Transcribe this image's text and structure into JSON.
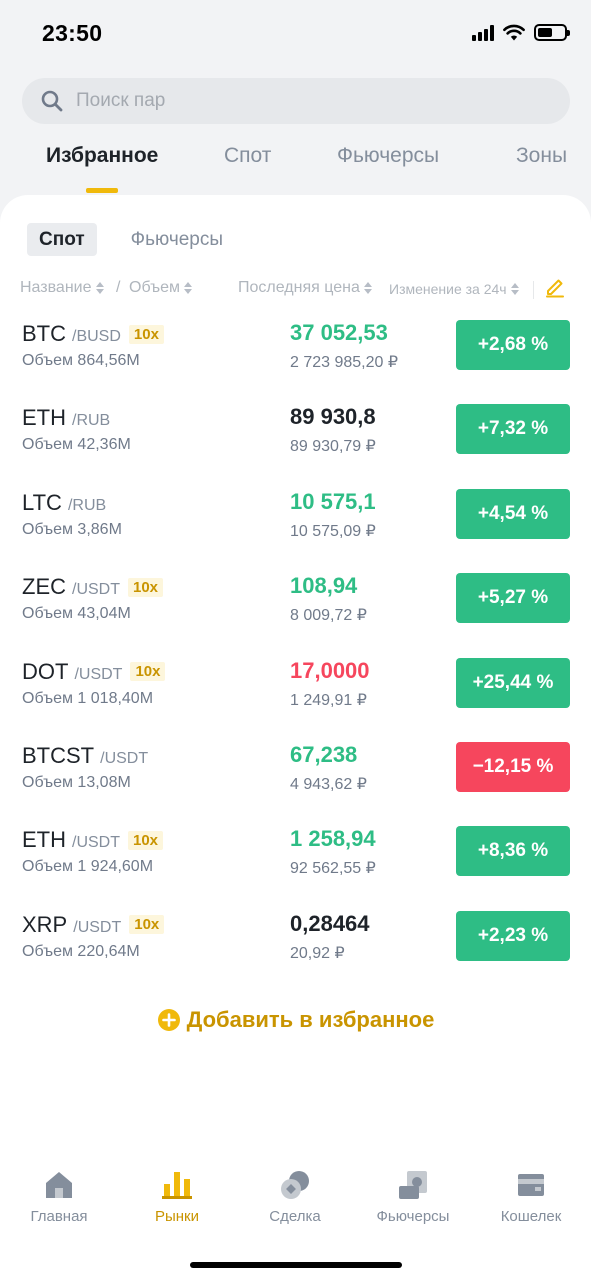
{
  "status_bar": {
    "time": "23:50"
  },
  "search": {
    "placeholder": "Поиск пар"
  },
  "top_tabs": [
    {
      "label": "Избранное",
      "active": true
    },
    {
      "label": "Спот"
    },
    {
      "label": "Фьючерсы"
    },
    {
      "label": "Зоны"
    }
  ],
  "sub_tabs": [
    {
      "label": "Спот",
      "active": true
    },
    {
      "label": "Фьючерсы"
    }
  ],
  "columns": {
    "name": "Название",
    "separator": "/",
    "volume": "Объем",
    "last_price": "Последняя цена",
    "change": "Изменение за 24ч"
  },
  "rows": [
    {
      "base": "BTC",
      "quote": "/BUSD",
      "leverage": "10x",
      "volume": "Объем 864,56M",
      "price": "37 052,53",
      "fiat": "2 723 985,20 ₽",
      "change": "+2,68 %"
    },
    {
      "base": "ETH",
      "quote": "/RUB",
      "leverage": "",
      "volume": "Объем 42,36M",
      "price": "89 930,8",
      "fiat": "89 930,79 ₽",
      "change": "+7,32 %"
    },
    {
      "base": "LTC",
      "quote": "/RUB",
      "leverage": "",
      "volume": "Объем 3,86M",
      "price": "10 575,1",
      "fiat": "10 575,09 ₽",
      "change": "+4,54 %"
    },
    {
      "base": "ZEC",
      "quote": "/USDT",
      "leverage": "10x",
      "volume": "Объем 43,04M",
      "price": "108,94",
      "fiat": "8 009,72 ₽",
      "change": "+5,27 %"
    },
    {
      "base": "DOT",
      "quote": "/USDT",
      "leverage": "10x",
      "volume": "Объем 1 018,40M",
      "price": "17,0000",
      "fiat": "1 249,91 ₽",
      "change": "+25,44 %"
    },
    {
      "base": "BTCST",
      "quote": "/USDT",
      "leverage": "",
      "volume": "Объем 13,08M",
      "price": "67,238",
      "fiat": "4 943,62 ₽",
      "change": "−12,15 %"
    },
    {
      "base": "ETH",
      "quote": "/USDT",
      "leverage": "10x",
      "volume": "Объем 1 924,60M",
      "price": "1 258,94",
      "fiat": "92 562,55 ₽",
      "change": "+8,36 %"
    },
    {
      "base": "XRP",
      "quote": "/USDT",
      "leverage": "10x",
      "volume": "Объем 220,64M",
      "price": "0,28464",
      "fiat": "20,92 ₽",
      "change": "+2,23 %"
    }
  ],
  "colors": {
    "up": "#2ebd85",
    "down": "#f6465d",
    "accent": "#f0b90b"
  },
  "add_favorites": "Добавить в избранное",
  "bottom_nav": [
    {
      "label": "Главная",
      "icon": "home-icon"
    },
    {
      "label": "Рынки",
      "icon": "markets-icon",
      "active": true
    },
    {
      "label": "Сделка",
      "icon": "trade-icon"
    },
    {
      "label": "Фьючерсы",
      "icon": "futures-icon"
    },
    {
      "label": "Кошелек",
      "icon": "wallet-icon"
    }
  ]
}
